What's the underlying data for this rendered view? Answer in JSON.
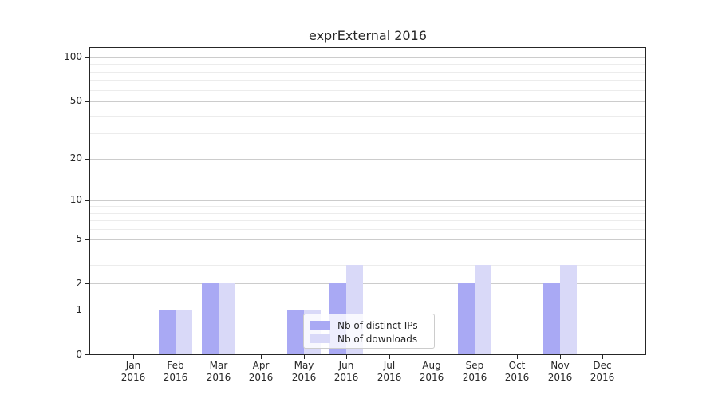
{
  "page": {
    "background": "#ffffff"
  },
  "chart_data": {
    "type": "bar",
    "title": "exprExternal 2016",
    "categories": [
      "Jan",
      "Feb",
      "Mar",
      "Apr",
      "May",
      "Jun",
      "Jul",
      "Aug",
      "Sep",
      "Oct",
      "Nov",
      "Dec"
    ],
    "year_label": "2016",
    "series": [
      {
        "name": "Nb of distinct IPs",
        "color": "#a9a9f4",
        "values": [
          0,
          1,
          2,
          0,
          1,
          2,
          0,
          0,
          2,
          0,
          2,
          0
        ]
      },
      {
        "name": "Nb of downloads",
        "color": "#d9d9f8",
        "values": [
          0,
          1,
          2,
          0,
          1,
          3,
          0,
          0,
          3,
          0,
          3,
          0
        ]
      }
    ],
    "xlabel": "",
    "ylabel": "",
    "yscale": "log1p",
    "ylim": [
      0,
      116
    ],
    "y_major_ticks": [
      100,
      50,
      20,
      10,
      5,
      2,
      1,
      0
    ],
    "y_minor_gridlines": [
      3,
      4,
      6,
      7,
      8,
      9,
      30,
      40,
      60,
      70,
      80,
      90
    ],
    "grid": "major+minor horizontal",
    "legend_position": "lower center (overlapping plot)"
  },
  "colors": {
    "grid_major": "#cccccc",
    "grid_minor": "#ececec",
    "spine": "#262626",
    "text": "#262626",
    "legend_border": "#cccccc",
    "legend_bg": "rgba(255,255,255,0.8)"
  }
}
